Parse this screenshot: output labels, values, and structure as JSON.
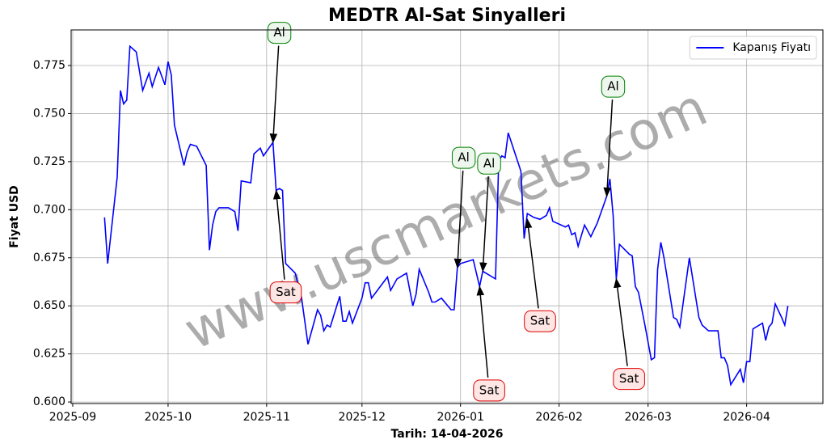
{
  "chart_data": {
    "type": "line",
    "title": "MEDTR Al-Sat Sinyalleri",
    "xlabel": "Tarih: 14-04-2026",
    "ylabel": "Fiyat USD",
    "watermark": "www.uscmarkets.com",
    "legend": "upper right",
    "grid": true,
    "x": [
      10,
      11,
      14,
      15,
      16,
      17,
      18,
      20,
      22,
      24,
      25,
      27,
      29,
      30,
      31,
      32,
      35,
      36,
      37,
      39,
      42,
      43,
      44,
      45,
      46,
      49,
      51,
      52,
      53,
      56,
      57,
      59,
      60,
      63,
      64,
      65,
      66,
      67,
      70,
      72,
      74,
      77,
      78,
      79,
      80,
      81,
      84,
      85,
      86,
      87,
      88,
      91,
      92,
      93,
      94,
      99,
      100,
      102,
      105,
      107,
      108,
      109,
      112,
      113,
      114,
      116,
      119,
      120,
      121,
      122,
      126,
      128,
      129,
      133,
      134,
      135,
      136,
      137,
      141,
      142,
      143,
      145,
      147,
      149,
      150,
      151,
      155,
      156,
      157,
      158,
      159,
      161,
      163,
      165,
      168,
      169,
      170,
      171,
      172,
      175,
      176,
      177,
      178,
      180,
      182,
      183,
      184,
      185,
      186,
      189,
      190,
      191,
      194,
      197,
      198,
      200,
      203,
      204,
      205,
      206,
      207,
      210,
      211,
      212,
      213,
      214,
      217,
      218,
      219,
      220,
      221,
      223,
      224,
      225
    ],
    "series": [
      {
        "name": "Kapanış Fiyatı",
        "color": "#0000ff",
        "values": [
          0.696,
          0.672,
          0.717,
          0.762,
          0.755,
          0.757,
          0.785,
          0.782,
          0.762,
          0.771,
          0.764,
          0.774,
          0.765,
          0.777,
          0.77,
          0.744,
          0.723,
          0.73,
          0.734,
          0.733,
          0.723,
          0.679,
          0.692,
          0.699,
          0.701,
          0.701,
          0.699,
          0.689,
          0.715,
          0.714,
          0.729,
          0.732,
          0.728,
          0.735,
          0.71,
          0.711,
          0.71,
          0.672,
          0.667,
          0.654,
          0.63,
          0.648,
          0.645,
          0.637,
          0.64,
          0.639,
          0.655,
          0.642,
          0.642,
          0.647,
          0.641,
          0.654,
          0.662,
          0.662,
          0.654,
          0.665,
          0.658,
          0.664,
          0.667,
          0.65,
          0.656,
          0.669,
          0.657,
          0.652,
          0.652,
          0.654,
          0.648,
          0.648,
          0.67,
          0.672,
          0.674,
          0.66,
          0.668,
          0.664,
          0.725,
          0.728,
          0.727,
          0.74,
          0.72,
          0.685,
          0.698,
          0.696,
          0.695,
          0.697,
          0.701,
          0.694,
          0.691,
          0.692,
          0.687,
          0.688,
          0.681,
          0.692,
          0.686,
          0.693,
          0.707,
          0.716,
          0.697,
          0.664,
          0.682,
          0.677,
          0.676,
          0.66,
          0.657,
          0.64,
          0.622,
          0.623,
          0.669,
          0.683,
          0.675,
          0.644,
          0.643,
          0.639,
          0.675,
          0.644,
          0.64,
          0.637,
          0.637,
          0.623,
          0.623,
          0.619,
          0.609,
          0.617,
          0.61,
          0.621,
          0.621,
          0.638,
          0.641,
          0.632,
          0.639,
          0.641,
          0.651,
          0.644,
          0.64,
          0.65
        ]
      }
    ],
    "annotations": [
      {
        "text": "Al",
        "x": 63,
        "y": 0.735,
        "text_x": 65,
        "text_y": 0.792,
        "color": "green"
      },
      {
        "text": "Sat",
        "x": 64,
        "y": 0.71,
        "text_x": 67,
        "text_y": 0.657,
        "color": "red"
      },
      {
        "text": "Al",
        "x": 121,
        "y": 0.67,
        "text_x": 123,
        "text_y": 0.727,
        "color": "green"
      },
      {
        "text": "Sat",
        "x": 128,
        "y": 0.66,
        "text_x": 131,
        "text_y": 0.606,
        "color": "red"
      },
      {
        "text": "Al",
        "x": 129,
        "y": 0.668,
        "text_x": 131,
        "text_y": 0.724,
        "color": "green"
      },
      {
        "text": "Sat",
        "x": 143,
        "y": 0.695,
        "text_x": 147,
        "text_y": 0.642,
        "color": "red"
      },
      {
        "text": "Al",
        "x": 168,
        "y": 0.707,
        "text_x": 170,
        "text_y": 0.764,
        "color": "green"
      },
      {
        "text": "Sat",
        "x": 171,
        "y": 0.664,
        "text_x": 175,
        "text_y": 0.612,
        "color": "red"
      }
    ],
    "xlim": [
      -0.5,
      236
    ],
    "xticks": [
      {
        "value": 0,
        "label": "2025-09"
      },
      {
        "value": 30,
        "label": "2025-10"
      },
      {
        "value": 61,
        "label": "2025-11"
      },
      {
        "value": 91,
        "label": "2025-12"
      },
      {
        "value": 122,
        "label": "2026-01"
      },
      {
        "value": 153,
        "label": "2026-02"
      },
      {
        "value": 181,
        "label": "2026-03"
      },
      {
        "value": 212,
        "label": "2026-04"
      }
    ],
    "ylim": [
      0.5992,
      0.7935
    ],
    "yticks": [
      {
        "value": 0.6,
        "label": "0.600"
      },
      0.625,
      {
        "value": 0.65,
        "label": "0.650"
      },
      0.675,
      {
        "value": 0.7,
        "label": "0.700"
      },
      0.725,
      {
        "value": 0.75,
        "label": "0.750"
      },
      0.775
    ]
  }
}
